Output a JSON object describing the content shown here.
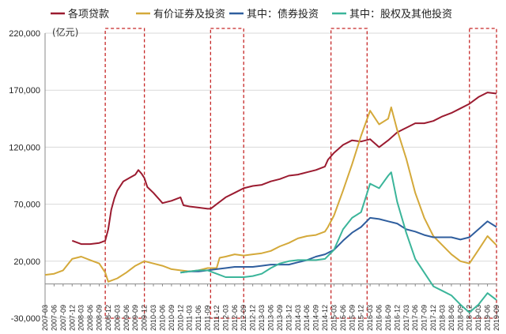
{
  "chart_data": {
    "type": "line",
    "unit_label": "(亿元)",
    "ylim": [
      -30000,
      220000
    ],
    "yticks": [
      -30000,
      20000,
      70000,
      120000,
      170000,
      220000
    ],
    "ytick_labels": [
      "-30,000",
      "20,000",
      "70,000",
      "120,000",
      "170,000",
      "220,000"
    ],
    "x_start": "2007-03",
    "x_end": "2019-09",
    "xtick_labels": [
      "2007-03",
      "2007-06",
      "2007-09",
      "2007-12",
      "2008-03",
      "2008-06",
      "2008-09",
      "2008-12",
      "2009-03",
      "2009-06",
      "2009-09",
      "2009-12",
      "2010-03",
      "2010-06",
      "2010-09",
      "2010-12",
      "2011-03",
      "2011-06",
      "2011-09",
      "2011-12",
      "2012-03",
      "2012-06",
      "2012-09",
      "2012-12",
      "2013-03",
      "2013-06",
      "2013-09",
      "2013-12",
      "2014-03",
      "2014-06",
      "2014-09",
      "2014-12",
      "2015-03",
      "2015-06",
      "2015-09",
      "2015-12",
      "2016-03",
      "2016-06",
      "2016-09",
      "2016-12",
      "2017-03",
      "2017-06",
      "2017-09",
      "2017-12",
      "2018-03",
      "2018-06",
      "2018-09",
      "2018-12",
      "2019-03",
      "2019-06",
      "2019-09"
    ],
    "highlight_ranges": [
      [
        "2008-11",
        "2009-12"
      ],
      [
        "2011-10",
        "2012-09"
      ],
      [
        "2015-02",
        "2016-02"
      ],
      [
        "2018-12",
        "2019-09"
      ]
    ],
    "colors": {
      "loans": "#9b1b30",
      "securities": "#d4a93a",
      "bonds": "#2f5e9e",
      "equity": "#3bb59a",
      "highlight": "#c62828"
    },
    "series": [
      {
        "name": "各项贷款",
        "color_key": "loans",
        "x": [
          "2007-12",
          "2008-03",
          "2008-06",
          "2008-09",
          "2008-10",
          "2008-11",
          "2008-12",
          "2009-01",
          "2009-02",
          "2009-03",
          "2009-05",
          "2009-07",
          "2009-09",
          "2009-10",
          "2009-11",
          "2009-12",
          "2010-01",
          "2010-03",
          "2010-05",
          "2010-06",
          "2010-09",
          "2010-12",
          "2011-01",
          "2011-03",
          "2011-06",
          "2011-09",
          "2011-10",
          "2011-12",
          "2012-03",
          "2012-06",
          "2012-09",
          "2012-12",
          "2013-03",
          "2013-06",
          "2013-09",
          "2013-12",
          "2014-03",
          "2014-06",
          "2014-09",
          "2014-12",
          "2015-01",
          "2015-03",
          "2015-06",
          "2015-09",
          "2015-12",
          "2016-03",
          "2016-06",
          "2016-09",
          "2016-12",
          "2017-03",
          "2017-06",
          "2017-09",
          "2017-12",
          "2018-03",
          "2018-06",
          "2018-09",
          "2018-12",
          "2019-03",
          "2019-06",
          "2019-09"
        ],
        "y": [
          38000,
          35000,
          35000,
          36000,
          37000,
          38000,
          48000,
          65000,
          75000,
          82000,
          90000,
          93000,
          96000,
          100000,
          97000,
          93000,
          85000,
          80000,
          74000,
          71000,
          73000,
          76000,
          69000,
          68000,
          67000,
          66000,
          66000,
          70000,
          76000,
          80000,
          84000,
          86000,
          87000,
          90000,
          92000,
          95000,
          96000,
          98000,
          100000,
          103000,
          109000,
          115000,
          122000,
          126000,
          125000,
          127000,
          120000,
          126000,
          133000,
          137000,
          141000,
          141000,
          143000,
          147000,
          150000,
          154000,
          158000,
          164000,
          168000,
          167000
        ]
      },
      {
        "name": "有价证券及投资",
        "color_key": "securities",
        "x": [
          "2007-03",
          "2007-06",
          "2007-09",
          "2007-12",
          "2008-03",
          "2008-06",
          "2008-09",
          "2008-11",
          "2008-12",
          "2009-03",
          "2009-06",
          "2009-09",
          "2009-12",
          "2010-03",
          "2010-06",
          "2010-09",
          "2010-12",
          "2011-03",
          "2011-06",
          "2011-09",
          "2011-12",
          "2012-01",
          "2012-03",
          "2012-06",
          "2012-09",
          "2012-12",
          "2013-03",
          "2013-06",
          "2013-09",
          "2013-12",
          "2014-03",
          "2014-06",
          "2014-09",
          "2014-12",
          "2015-01",
          "2015-03",
          "2015-06",
          "2015-09",
          "2015-12",
          "2016-03",
          "2016-06",
          "2016-09",
          "2016-10",
          "2016-12",
          "2017-03",
          "2017-06",
          "2017-09",
          "2017-12",
          "2018-03",
          "2018-06",
          "2018-09",
          "2018-12",
          "2019-03",
          "2019-06",
          "2019-09"
        ],
        "y": [
          8000,
          9000,
          12000,
          22000,
          24000,
          21000,
          18000,
          10000,
          2000,
          5000,
          10000,
          16000,
          20000,
          18000,
          16000,
          13000,
          12000,
          11000,
          12000,
          14000,
          14000,
          23000,
          24000,
          26000,
          25000,
          26000,
          27000,
          29000,
          33000,
          36000,
          40000,
          42000,
          43000,
          46000,
          50000,
          60000,
          82000,
          105000,
          130000,
          152000,
          140000,
          145000,
          155000,
          135000,
          110000,
          80000,
          58000,
          42000,
          34000,
          26000,
          20000,
          18000,
          30000,
          42000,
          34000
        ]
      },
      {
        "name": "其中：债券投资",
        "color_key": "bonds",
        "x": [
          "2010-12",
          "2011-03",
          "2011-06",
          "2011-09",
          "2011-12",
          "2012-03",
          "2012-06",
          "2012-09",
          "2012-12",
          "2013-03",
          "2013-06",
          "2013-09",
          "2013-12",
          "2014-03",
          "2014-06",
          "2014-09",
          "2014-12",
          "2015-03",
          "2015-06",
          "2015-09",
          "2015-12",
          "2016-03",
          "2016-06",
          "2016-09",
          "2016-12",
          "2017-03",
          "2017-06",
          "2017-09",
          "2017-12",
          "2018-03",
          "2018-06",
          "2018-09",
          "2018-12",
          "2019-03",
          "2019-06",
          "2019-09"
        ],
        "y": [
          10000,
          11000,
          11000,
          12000,
          13000,
          14000,
          15000,
          15000,
          15000,
          16000,
          17000,
          17000,
          17000,
          19000,
          21000,
          24000,
          26000,
          30000,
          38000,
          45000,
          50000,
          58000,
          57000,
          55000,
          53000,
          48000,
          46000,
          43000,
          41000,
          41000,
          41000,
          39000,
          41000,
          48000,
          55000,
          50000
        ]
      },
      {
        "name": "其中：股权及其他投资",
        "color_key": "equity",
        "x": [
          "2010-12",
          "2011-03",
          "2011-06",
          "2011-09",
          "2011-12",
          "2012-03",
          "2012-06",
          "2012-09",
          "2012-12",
          "2013-03",
          "2013-06",
          "2013-09",
          "2013-12",
          "2014-03",
          "2014-06",
          "2014-09",
          "2014-12",
          "2015-03",
          "2015-06",
          "2015-09",
          "2015-12",
          "2016-03",
          "2016-06",
          "2016-09",
          "2016-10",
          "2016-12",
          "2017-03",
          "2017-06",
          "2017-09",
          "2017-12",
          "2018-03",
          "2018-06",
          "2018-09",
          "2018-12",
          "2019-03",
          "2019-06",
          "2019-09"
        ],
        "y": [
          10000,
          11000,
          12000,
          12000,
          9000,
          6000,
          6000,
          6000,
          7000,
          9000,
          14000,
          18000,
          20000,
          21000,
          21000,
          21000,
          22000,
          30000,
          48000,
          58000,
          63000,
          88000,
          84000,
          95000,
          98000,
          72000,
          45000,
          22000,
          10000,
          -2000,
          -6000,
          -10000,
          -18000,
          -25000,
          -18000,
          -8000,
          -14000
        ]
      }
    ]
  }
}
